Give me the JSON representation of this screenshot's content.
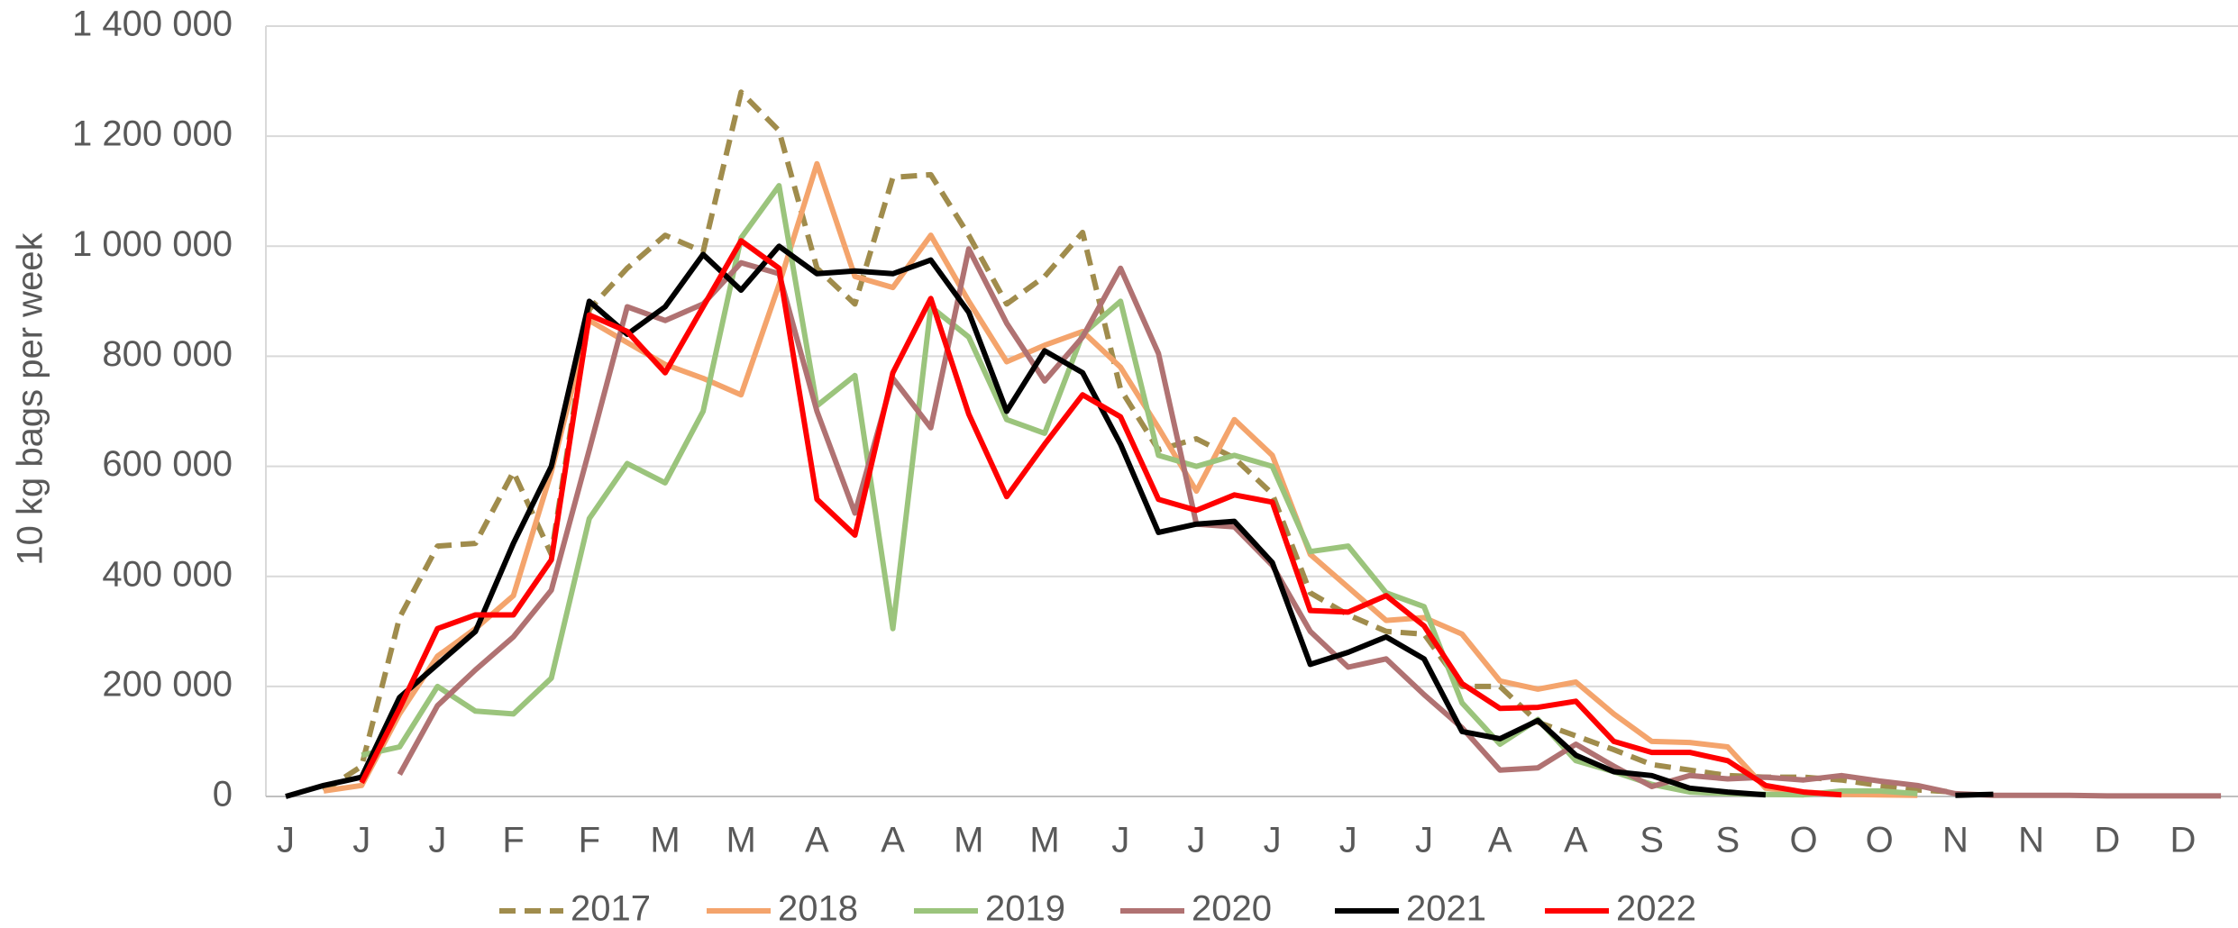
{
  "chart_data": {
    "type": "line",
    "y_label": "10 kg bags per week",
    "categories": [
      "J",
      null,
      "J",
      null,
      "J",
      null,
      "F",
      null,
      "F",
      null,
      "M",
      null,
      "M",
      null,
      "A",
      null,
      "A",
      null,
      "M",
      null,
      "M",
      null,
      "J",
      null,
      "J",
      null,
      "J",
      null,
      "J",
      null,
      "J",
      null,
      "A",
      null,
      "A",
      null,
      "S",
      null,
      "S",
      null,
      "O",
      null,
      "O",
      null,
      "N",
      null,
      "N",
      null,
      "D",
      null,
      "D",
      null
    ],
    "ylim": [
      0,
      1400000
    ],
    "yticks": [
      0,
      {
        "value": 200000,
        "label": "200 000"
      },
      {
        "value": 400000,
        "label": "400 000"
      },
      {
        "value": 600000,
        "label": "600 000"
      },
      {
        "value": 800000,
        "label": "800 000"
      },
      {
        "value": 1000000,
        "label": "1 000 000"
      },
      {
        "value": 1200000,
        "label": "1 200 000"
      },
      {
        "value": 1400000,
        "label": "1 400 000"
      }
    ],
    "grid": true,
    "legend": "bottom",
    "series": [
      {
        "name": "2017",
        "color": "#a08c4c",
        "dashed": true,
        "values": [
          null,
          10000,
          55000,
          325000,
          455000,
          460000,
          590000,
          440000,
          885000,
          960000,
          1020000,
          990000,
          1280000,
          1210000,
          960000,
          895000,
          1125000,
          1130000,
          1020000,
          895000,
          945000,
          1025000,
          740000,
          630000,
          650000,
          615000,
          550000,
          370000,
          330000,
          300000,
          295000,
          200000,
          200000,
          135000,
          110000,
          85000,
          58000,
          48000,
          38000,
          35000,
          35000,
          30000,
          20000,
          12000,
          8000,
          null,
          null,
          null,
          null,
          null,
          null,
          null
        ]
      },
      {
        "name": "2018",
        "color": "#f4a46c",
        "values": [
          null,
          10000,
          20000,
          150000,
          255000,
          305000,
          365000,
          590000,
          865000,
          825000,
          785000,
          760000,
          730000,
          930000,
          1150000,
          945000,
          925000,
          1020000,
          900000,
          790000,
          820000,
          845000,
          780000,
          670000,
          555000,
          685000,
          620000,
          440000,
          380000,
          320000,
          325000,
          295000,
          210000,
          195000,
          208000,
          150000,
          100000,
          98000,
          90000,
          15000,
          8000,
          4000,
          3000,
          2000,
          null,
          null,
          null,
          null,
          null,
          null,
          null,
          null
        ]
      },
      {
        "name": "2019",
        "color": "#9bc47c",
        "values": [
          null,
          null,
          75000,
          90000,
          200000,
          155000,
          150000,
          215000,
          505000,
          605000,
          570000,
          700000,
          1015000,
          1110000,
          710000,
          765000,
          305000,
          890000,
          835000,
          685000,
          660000,
          840000,
          900000,
          620000,
          600000,
          620000,
          600000,
          445000,
          455000,
          370000,
          345000,
          170000,
          95000,
          140000,
          65000,
          45000,
          22000,
          8000,
          5000,
          4000,
          3000,
          10000,
          10000,
          5000,
          null,
          null,
          null,
          null,
          null,
          null,
          null,
          null
        ]
      },
      {
        "name": "2020",
        "color": "#b07272",
        "values": [
          null,
          null,
          null,
          40000,
          165000,
          230000,
          290000,
          375000,
          630000,
          890000,
          865000,
          895000,
          970000,
          950000,
          700000,
          515000,
          760000,
          670000,
          995000,
          860000,
          755000,
          835000,
          960000,
          805000,
          495000,
          490000,
          420000,
          300000,
          235000,
          250000,
          185000,
          125000,
          48000,
          52000,
          95000,
          55000,
          18000,
          38000,
          32000,
          35000,
          30000,
          38000,
          28000,
          20000,
          5000,
          2000,
          2000,
          2000,
          1000,
          1000,
          1000,
          1000
        ]
      },
      {
        "name": "2021",
        "color": "#000000",
        "values": [
          0,
          20000,
          35000,
          180000,
          240000,
          300000,
          460000,
          600000,
          900000,
          840000,
          890000,
          985000,
          920000,
          1000000,
          950000,
          955000,
          950000,
          975000,
          880000,
          700000,
          810000,
          770000,
          640000,
          480000,
          495000,
          500000,
          425000,
          240000,
          262000,
          290000,
          250000,
          118000,
          105000,
          138000,
          75000,
          45000,
          38000,
          15000,
          8000,
          3000,
          null,
          null,
          null,
          null,
          2000,
          4000,
          null,
          null,
          null,
          null,
          null,
          null
        ]
      },
      {
        "name": "2022",
        "color": "#ff0000",
        "values": [
          null,
          null,
          25000,
          160000,
          305000,
          330000,
          330000,
          430000,
          875000,
          845000,
          770000,
          890000,
          1010000,
          960000,
          540000,
          475000,
          770000,
          905000,
          695000,
          545000,
          640000,
          730000,
          690000,
          540000,
          520000,
          548000,
          535000,
          338000,
          335000,
          365000,
          310000,
          205000,
          160000,
          162000,
          173000,
          100000,
          80000,
          80000,
          65000,
          20000,
          8000,
          3000,
          null,
          null,
          null,
          null,
          null,
          null,
          null,
          null,
          null,
          null
        ]
      }
    ]
  }
}
